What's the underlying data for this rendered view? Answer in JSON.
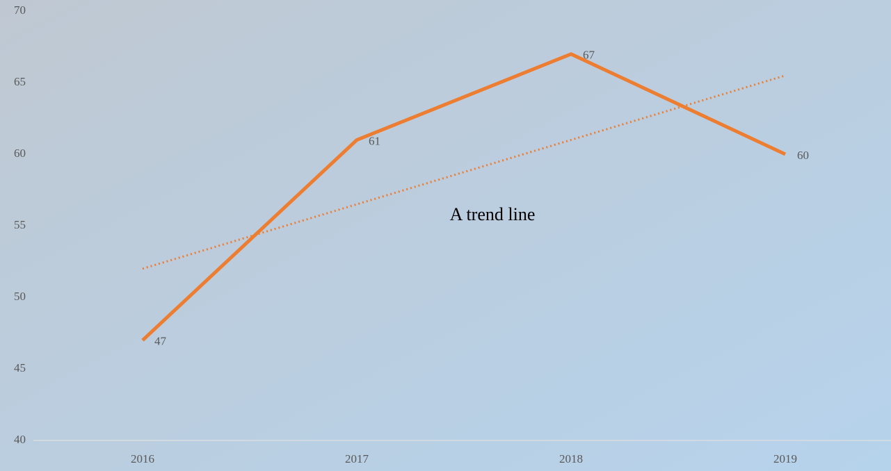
{
  "chart_data": {
    "type": "line",
    "categories": [
      "2016",
      "2017",
      "2018",
      "2019"
    ],
    "series": [
      {
        "color": "#ed7d31",
        "values": [
          47,
          61,
          67,
          60
        ]
      }
    ],
    "trendline": {
      "label": "A trend line",
      "color": "#ed7d31",
      "values": [
        52,
        56.5,
        61,
        65.5
      ]
    },
    "ylim": [
      40,
      70
    ],
    "yticks": [
      40,
      45,
      50,
      55,
      60,
      65,
      70
    ],
    "grid": false
  }
}
